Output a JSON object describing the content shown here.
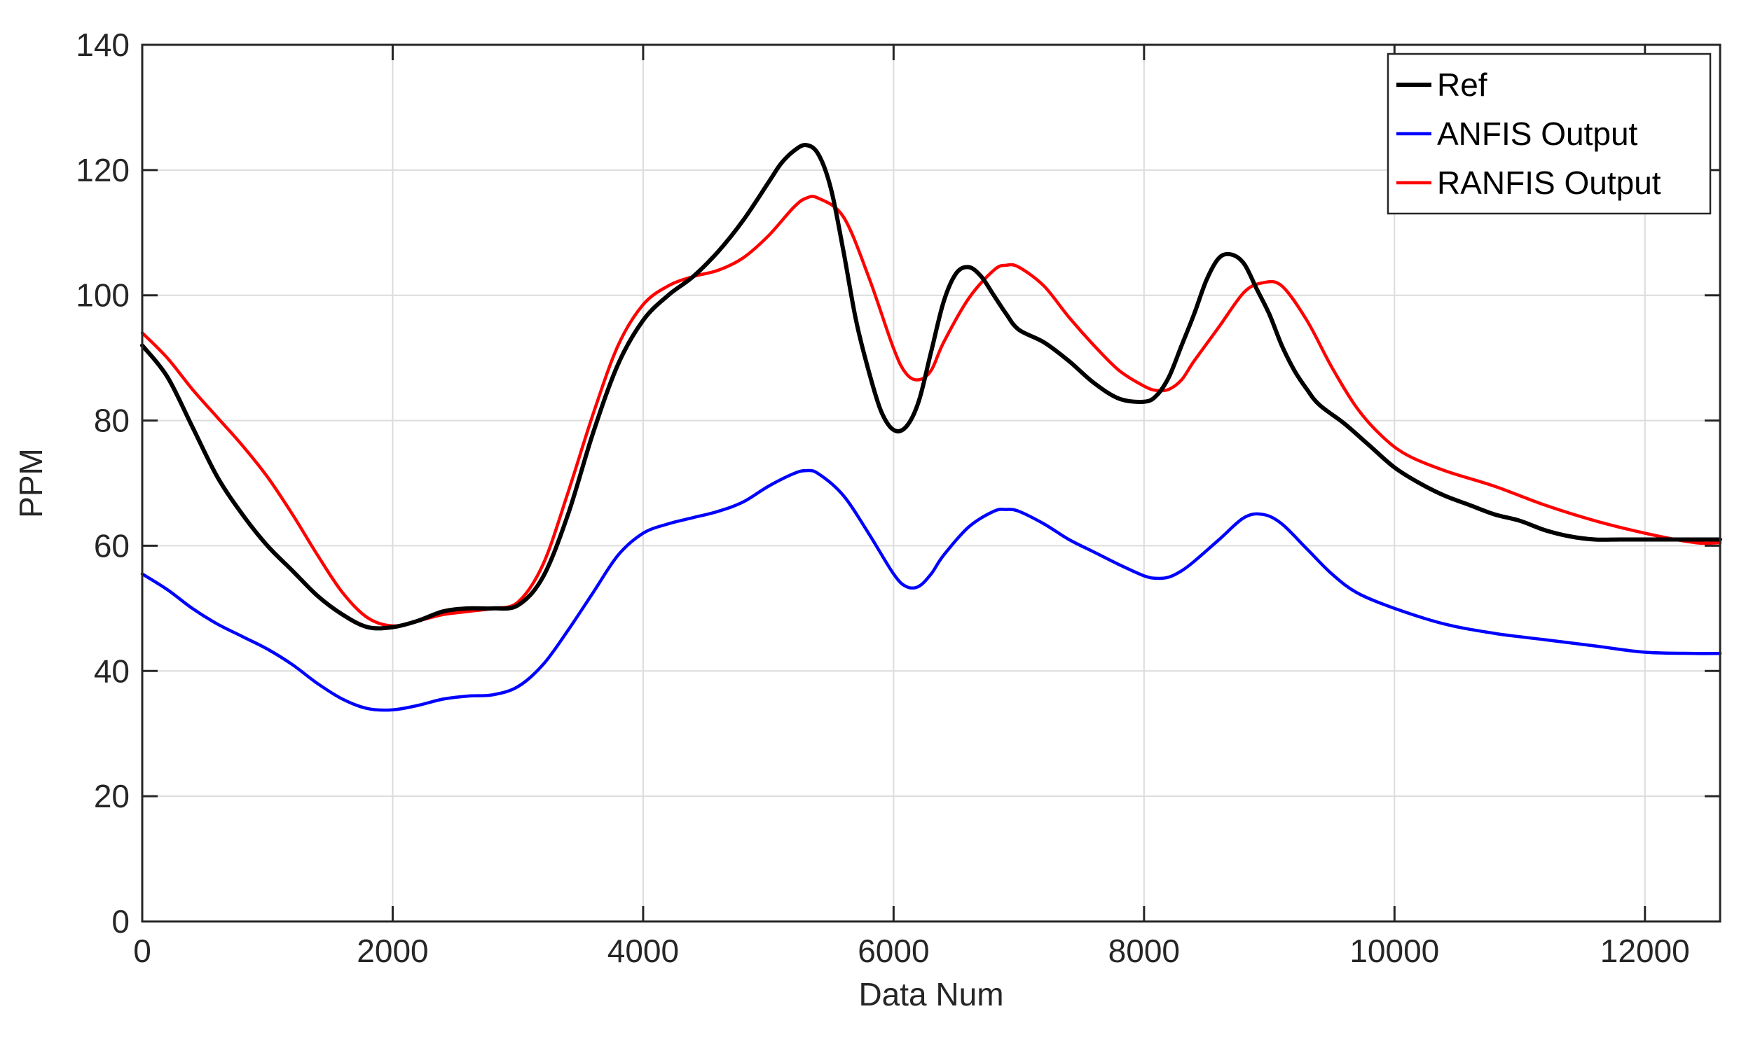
{
  "chart_data": {
    "type": "line",
    "xlabel": "Data Num",
    "ylabel": "PPM",
    "xlim": [
      0,
      12600
    ],
    "ylim": [
      0,
      140
    ],
    "xticks": [
      0,
      2000,
      4000,
      6000,
      8000,
      10000,
      12000
    ],
    "yticks": [
      0,
      20,
      40,
      60,
      80,
      100,
      120,
      140
    ],
    "grid": true,
    "legend_position": "top-right",
    "series": [
      {
        "name": "Ref",
        "color": "#000000",
        "x": [
          0,
          200,
          400,
          600,
          800,
          1000,
          1200,
          1400,
          1600,
          1800,
          2000,
          2200,
          2400,
          2600,
          2800,
          3000,
          3200,
          3400,
          3600,
          3800,
          4000,
          4200,
          4400,
          4600,
          4800,
          5000,
          5100,
          5200,
          5300,
          5400,
          5500,
          5600,
          5700,
          5800,
          5900,
          6000,
          6100,
          6200,
          6300,
          6400,
          6500,
          6600,
          6700,
          6800,
          6900,
          7000,
          7200,
          7400,
          7600,
          7800,
          8000,
          8100,
          8200,
          8300,
          8400,
          8500,
          8600,
          8700,
          8800,
          8900,
          9000,
          9100,
          9200,
          9300,
          9400,
          9600,
          9800,
          10000,
          10200,
          10400,
          10600,
          10800,
          11000,
          11200,
          11400,
          11600,
          11800,
          12000,
          12200,
          12400,
          12600
        ],
        "y": [
          92,
          87,
          79,
          71,
          65,
          60,
          56,
          52,
          49,
          47,
          47,
          48,
          49.5,
          50,
          50,
          50.5,
          55,
          65,
          78,
          89,
          96,
          100,
          103,
          107,
          112,
          118,
          121,
          123,
          124,
          122.5,
          117,
          107,
          96,
          88,
          81.5,
          78.5,
          79,
          83,
          91,
          99,
          103.5,
          104.5,
          103,
          100,
          97,
          94.5,
          92.5,
          89.5,
          86,
          83.5,
          83,
          84,
          87,
          92,
          97,
          102.5,
          106,
          106.5,
          105,
          101,
          97,
          92,
          88,
          85,
          82.5,
          79.5,
          76,
          72.5,
          70,
          68,
          66.5,
          65,
          64,
          62.5,
          61.5,
          61,
          61,
          61,
          61,
          61,
          61
        ]
      },
      {
        "name": "ANFIS Output",
        "color": "#0000ff",
        "x": [
          0,
          200,
          400,
          600,
          800,
          1000,
          1200,
          1400,
          1600,
          1800,
          2000,
          2200,
          2400,
          2600,
          2800,
          3000,
          3200,
          3400,
          3600,
          3800,
          4000,
          4200,
          4400,
          4600,
          4800,
          5000,
          5200,
          5300,
          5400,
          5600,
          5800,
          6000,
          6100,
          6200,
          6300,
          6400,
          6600,
          6800,
          6900,
          7000,
          7200,
          7400,
          7600,
          7800,
          8000,
          8100,
          8200,
          8300,
          8400,
          8600,
          8800,
          8950,
          9100,
          9300,
          9500,
          9700,
          10000,
          10400,
          10800,
          11200,
          11600,
          12000,
          12400,
          12600
        ],
        "y": [
          55.5,
          53,
          50,
          47.5,
          45.5,
          43.5,
          41,
          38,
          35.5,
          34,
          33.8,
          34.5,
          35.5,
          36,
          36.2,
          37.5,
          41,
          46.5,
          52.5,
          58.5,
          62,
          63.5,
          64.5,
          65.5,
          67,
          69.5,
          71.5,
          72,
          71.5,
          68,
          62,
          55.5,
          53.5,
          53.5,
          55.5,
          58.5,
          63,
          65.5,
          65.8,
          65.5,
          63.5,
          61,
          59,
          57,
          55.2,
          54.8,
          55,
          56,
          57.5,
          61,
          64.5,
          65,
          63.5,
          59.5,
          55.5,
          52.5,
          50,
          47.5,
          46,
          45,
          44,
          43,
          42.8,
          42.8
        ]
      },
      {
        "name": "RANFIS Output",
        "color": "#ff0000",
        "x": [
          0,
          200,
          400,
          600,
          800,
          1000,
          1200,
          1400,
          1600,
          1800,
          2000,
          2200,
          2400,
          2600,
          2800,
          3000,
          3200,
          3400,
          3600,
          3800,
          4000,
          4200,
          4400,
          4600,
          4800,
          5000,
          5200,
          5300,
          5400,
          5600,
          5800,
          6000,
          6100,
          6200,
          6300,
          6400,
          6600,
          6800,
          6900,
          7000,
          7200,
          7400,
          7600,
          7800,
          8000,
          8100,
          8200,
          8300,
          8400,
          8600,
          8800,
          8950,
          9100,
          9300,
          9500,
          9700,
          9900,
          10100,
          10400,
          10800,
          11200,
          11600,
          12000,
          12400,
          12600
        ],
        "y": [
          94,
          90,
          85,
          80.5,
          76,
          71,
          65,
          58.5,
          52.5,
          48.5,
          47.2,
          48,
          49,
          49.5,
          50,
          51,
          57,
          68.5,
          81,
          92,
          98.5,
          101.5,
          103,
          104,
          106,
          109.5,
          114,
          115.5,
          115.5,
          112.5,
          103,
          91.5,
          87.5,
          86.5,
          88,
          92.5,
          99.5,
          104,
          104.8,
          104.5,
          101.5,
          96.5,
          92,
          88,
          85.5,
          84.8,
          85,
          86.5,
          89.5,
          95,
          100.5,
          102,
          101.5,
          96,
          88.5,
          82,
          77.5,
          74.5,
          72,
          69.5,
          66.5,
          64,
          62,
          60.5,
          60.5
        ]
      }
    ]
  }
}
